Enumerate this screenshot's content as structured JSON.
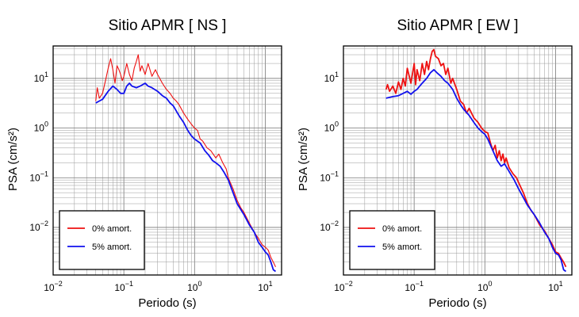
{
  "chart_data": [
    {
      "type": "line",
      "title": "Sitio APMR [ NS ]",
      "xlabel": "Periodo (s)",
      "ylabel": "PSA (cm/s²)",
      "x_scale": "log",
      "y_scale": "log",
      "xlim": [
        0.01,
        17
      ],
      "ylim": [
        0.0011,
        45
      ],
      "grid": true,
      "legend_position": "bottom-left",
      "x_ticks": [
        {
          "value": 0.01,
          "base": "10",
          "exp": "−2"
        },
        {
          "value": 0.1,
          "base": "10",
          "exp": "−1"
        },
        {
          "value": 1,
          "base": "10",
          "exp": "0"
        },
        {
          "value": 10,
          "base": "10",
          "exp": "1"
        }
      ],
      "y_ticks": [
        {
          "value": 0.01,
          "base": "10",
          "exp": "−2"
        },
        {
          "value": 0.1,
          "base": "10",
          "exp": "−1"
        },
        {
          "value": 1,
          "base": "10",
          "exp": "0"
        },
        {
          "value": 10,
          "base": "10",
          "exp": "1"
        }
      ],
      "series": [
        {
          "name": "0% amort.",
          "color": "#ee1111",
          "points": [
            [
              0.04,
              3.5
            ],
            [
              0.042,
              6.5
            ],
            [
              0.045,
              4.0
            ],
            [
              0.05,
              5.0
            ],
            [
              0.055,
              9.0
            ],
            [
              0.06,
              16
            ],
            [
              0.065,
              25
            ],
            [
              0.07,
              15
            ],
            [
              0.075,
              8.0
            ],
            [
              0.08,
              18
            ],
            [
              0.085,
              15
            ],
            [
              0.09,
              12
            ],
            [
              0.095,
              9.0
            ],
            [
              0.1,
              11
            ],
            [
              0.11,
              20
            ],
            [
              0.12,
              12
            ],
            [
              0.13,
              9.0
            ],
            [
              0.14,
              16
            ],
            [
              0.15,
              22
            ],
            [
              0.16,
              30
            ],
            [
              0.17,
              14
            ],
            [
              0.18,
              18
            ],
            [
              0.2,
              12
            ],
            [
              0.22,
              20
            ],
            [
              0.25,
              11
            ],
            [
              0.28,
              15
            ],
            [
              0.3,
              12
            ],
            [
              0.35,
              8.0
            ],
            [
              0.4,
              6.0
            ],
            [
              0.45,
              5.0
            ],
            [
              0.5,
              4.0
            ],
            [
              0.55,
              3.5
            ],
            [
              0.6,
              3.0
            ],
            [
              0.7,
              2.0
            ],
            [
              0.8,
              1.5
            ],
            [
              0.9,
              1.2
            ],
            [
              1.0,
              1.0
            ],
            [
              1.1,
              0.9
            ],
            [
              1.2,
              0.6
            ],
            [
              1.3,
              0.55
            ],
            [
              1.5,
              0.4
            ],
            [
              1.7,
              0.35
            ],
            [
              2.0,
              0.25
            ],
            [
              2.2,
              0.3
            ],
            [
              2.5,
              0.2
            ],
            [
              2.8,
              0.15
            ],
            [
              3.0,
              0.1
            ],
            [
              3.5,
              0.06
            ],
            [
              4.0,
              0.035
            ],
            [
              4.5,
              0.025
            ],
            [
              5.0,
              0.02
            ],
            [
              6.0,
              0.012
            ],
            [
              7.0,
              0.008
            ],
            [
              8.0,
              0.006
            ],
            [
              9.0,
              0.0045
            ],
            [
              10.0,
              0.004
            ],
            [
              11.0,
              0.0035
            ],
            [
              12.0,
              0.0025
            ],
            [
              13.0,
              0.002
            ],
            [
              14.0,
              0.0016
            ]
          ]
        },
        {
          "name": "5% amort.",
          "color": "#1111ee",
          "points": [
            [
              0.04,
              3.2
            ],
            [
              0.045,
              3.5
            ],
            [
              0.05,
              3.8
            ],
            [
              0.06,
              5.5
            ],
            [
              0.07,
              7.0
            ],
            [
              0.08,
              6.0
            ],
            [
              0.09,
              5.0
            ],
            [
              0.1,
              5.0
            ],
            [
              0.11,
              7.0
            ],
            [
              0.12,
              8.0
            ],
            [
              0.13,
              7.0
            ],
            [
              0.15,
              6.5
            ],
            [
              0.17,
              7.0
            ],
            [
              0.2,
              8.0
            ],
            [
              0.22,
              7.0
            ],
            [
              0.25,
              6.5
            ],
            [
              0.3,
              5.5
            ],
            [
              0.35,
              4.5
            ],
            [
              0.4,
              4.0
            ],
            [
              0.45,
              3.2
            ],
            [
              0.5,
              2.8
            ],
            [
              0.6,
              1.8
            ],
            [
              0.7,
              1.3
            ],
            [
              0.8,
              0.9
            ],
            [
              0.9,
              0.7
            ],
            [
              1.0,
              0.6
            ],
            [
              1.2,
              0.5
            ],
            [
              1.4,
              0.35
            ],
            [
              1.6,
              0.28
            ],
            [
              1.8,
              0.22
            ],
            [
              2.0,
              0.2
            ],
            [
              2.3,
              0.17
            ],
            [
              2.6,
              0.13
            ],
            [
              3.0,
              0.09
            ],
            [
              3.5,
              0.05
            ],
            [
              4.0,
              0.03
            ],
            [
              5.0,
              0.018
            ],
            [
              6.0,
              0.011
            ],
            [
              7.0,
              0.008
            ],
            [
              8.0,
              0.005
            ],
            [
              9.0,
              0.004
            ],
            [
              10.0,
              0.0032
            ],
            [
              11.0,
              0.0028
            ],
            [
              12.0,
              0.002
            ],
            [
              13.0,
              0.0014
            ],
            [
              14.0,
              0.0013
            ]
          ]
        }
      ]
    },
    {
      "type": "line",
      "title": "Sitio APMR [ EW ]",
      "xlabel": "Periodo (s)",
      "ylabel": "PSA (cm/s²)",
      "x_scale": "log",
      "y_scale": "log",
      "xlim": [
        0.01,
        17
      ],
      "ylim": [
        0.0011,
        45
      ],
      "grid": true,
      "legend_position": "bottom-left",
      "x_ticks": [
        {
          "value": 0.01,
          "base": "10",
          "exp": "−2"
        },
        {
          "value": 0.1,
          "base": "10",
          "exp": "−1"
        },
        {
          "value": 1,
          "base": "10",
          "exp": "0"
        },
        {
          "value": 10,
          "base": "10",
          "exp": "1"
        }
      ],
      "y_ticks": [
        {
          "value": 0.01,
          "base": "10",
          "exp": "−2"
        },
        {
          "value": 0.1,
          "base": "10",
          "exp": "−1"
        },
        {
          "value": 1,
          "base": "10",
          "exp": "0"
        },
        {
          "value": 10,
          "base": "10",
          "exp": "1"
        }
      ],
      "series": [
        {
          "name": "0% amort.",
          "color": "#ee1111",
          "points": [
            [
              0.04,
              6.0
            ],
            [
              0.042,
              7.5
            ],
            [
              0.045,
              5.5
            ],
            [
              0.05,
              7.0
            ],
            [
              0.055,
              5.0
            ],
            [
              0.06,
              8.5
            ],
            [
              0.065,
              6.0
            ],
            [
              0.07,
              10
            ],
            [
              0.075,
              7.0
            ],
            [
              0.08,
              16
            ],
            [
              0.09,
              8.0
            ],
            [
              0.1,
              20
            ],
            [
              0.105,
              7.5
            ],
            [
              0.11,
              15
            ],
            [
              0.12,
              9.0
            ],
            [
              0.13,
              20
            ],
            [
              0.14,
              12
            ],
            [
              0.15,
              22
            ],
            [
              0.16,
              15
            ],
            [
              0.17,
              25
            ],
            [
              0.18,
              35
            ],
            [
              0.19,
              38
            ],
            [
              0.2,
              28
            ],
            [
              0.22,
              25
            ],
            [
              0.24,
              18
            ],
            [
              0.26,
              20
            ],
            [
              0.28,
              12
            ],
            [
              0.3,
              16
            ],
            [
              0.33,
              8.0
            ],
            [
              0.35,
              10
            ],
            [
              0.4,
              6.0
            ],
            [
              0.45,
              3.5
            ],
            [
              0.5,
              3.0
            ],
            [
              0.55,
              2.0
            ],
            [
              0.6,
              2.5
            ],
            [
              0.7,
              1.6
            ],
            [
              0.8,
              1.3
            ],
            [
              0.9,
              1.0
            ],
            [
              1.0,
              0.85
            ],
            [
              1.1,
              0.8
            ],
            [
              1.2,
              0.5
            ],
            [
              1.3,
              0.35
            ],
            [
              1.4,
              0.45
            ],
            [
              1.5,
              0.25
            ],
            [
              1.6,
              0.35
            ],
            [
              1.7,
              0.22
            ],
            [
              1.8,
              0.3
            ],
            [
              1.9,
              0.2
            ],
            [
              2.0,
              0.25
            ],
            [
              2.2,
              0.16
            ],
            [
              2.5,
              0.12
            ],
            [
              2.8,
              0.1
            ],
            [
              3.0,
              0.08
            ],
            [
              3.5,
              0.05
            ],
            [
              4.0,
              0.03
            ],
            [
              4.5,
              0.022
            ],
            [
              5.0,
              0.018
            ],
            [
              6.0,
              0.011
            ],
            [
              7.0,
              0.0085
            ],
            [
              8.0,
              0.006
            ],
            [
              9.0,
              0.0045
            ],
            [
              10.0,
              0.0032
            ],
            [
              11.0,
              0.003
            ],
            [
              12.0,
              0.0024
            ],
            [
              13.0,
              0.002
            ],
            [
              14.0,
              0.0016
            ]
          ]
        },
        {
          "name": "5% amort.",
          "color": "#1111ee",
          "points": [
            [
              0.04,
              4.0
            ],
            [
              0.05,
              4.3
            ],
            [
              0.06,
              4.5
            ],
            [
              0.07,
              5.0
            ],
            [
              0.08,
              5.5
            ],
            [
              0.09,
              4.8
            ],
            [
              0.1,
              5.5
            ],
            [
              0.11,
              6.0
            ],
            [
              0.12,
              7.0
            ],
            [
              0.13,
              8.0
            ],
            [
              0.15,
              10
            ],
            [
              0.17,
              13
            ],
            [
              0.19,
              15
            ],
            [
              0.21,
              13
            ],
            [
              0.24,
              11
            ],
            [
              0.27,
              9.0
            ],
            [
              0.3,
              8.0
            ],
            [
              0.35,
              6.0
            ],
            [
              0.4,
              4.0
            ],
            [
              0.45,
              3.0
            ],
            [
              0.5,
              2.4
            ],
            [
              0.6,
              1.8
            ],
            [
              0.7,
              1.3
            ],
            [
              0.8,
              1.0
            ],
            [
              0.9,
              0.85
            ],
            [
              1.0,
              0.75
            ],
            [
              1.1,
              0.6
            ],
            [
              1.2,
              0.45
            ],
            [
              1.3,
              0.35
            ],
            [
              1.5,
              0.22
            ],
            [
              1.7,
              0.17
            ],
            [
              1.9,
              0.19
            ],
            [
              2.1,
              0.15
            ],
            [
              2.3,
              0.12
            ],
            [
              2.6,
              0.09
            ],
            [
              3.0,
              0.06
            ],
            [
              3.5,
              0.04
            ],
            [
              4.0,
              0.028
            ],
            [
              5.0,
              0.018
            ],
            [
              6.0,
              0.012
            ],
            [
              7.0,
              0.008
            ],
            [
              8.0,
              0.006
            ],
            [
              9.0,
              0.004
            ],
            [
              10.0,
              0.003
            ],
            [
              11.0,
              0.0028
            ],
            [
              12.0,
              0.0022
            ],
            [
              13.0,
              0.0014
            ],
            [
              14.0,
              0.0013
            ]
          ]
        }
      ]
    }
  ]
}
